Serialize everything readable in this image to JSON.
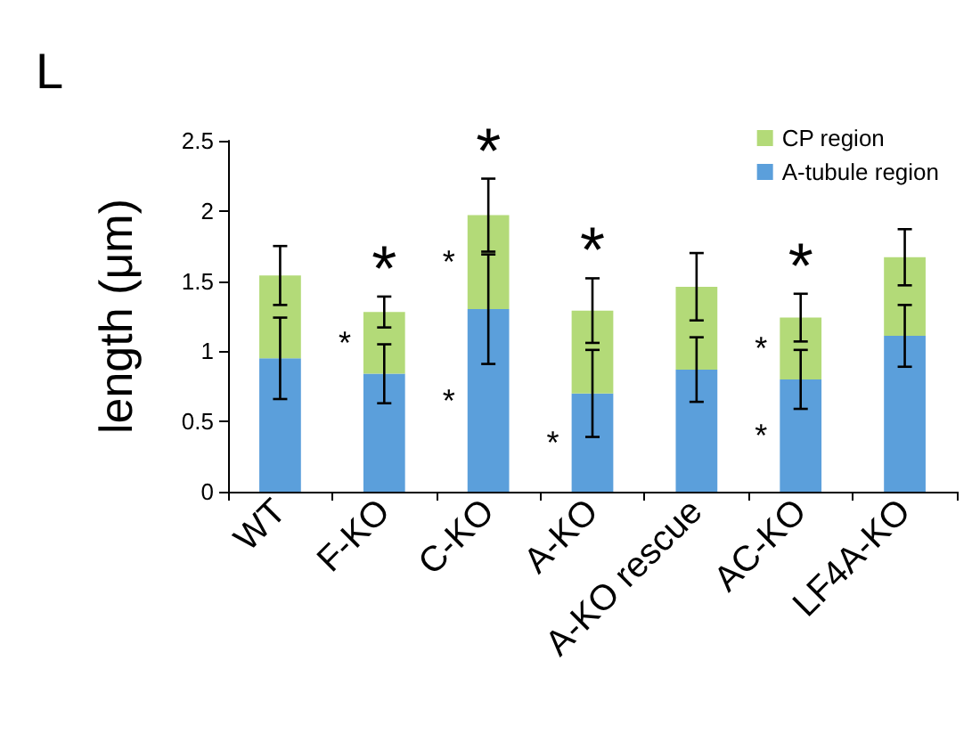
{
  "chart_data": {
    "type": "bar",
    "stacked": true,
    "ylabel": "length (μm)",
    "categories": [
      "WT",
      "F-KO",
      "C-KO",
      "A-KO",
      "A-KO rescue",
      "AC-KO",
      "LF4A-KO"
    ],
    "series": [
      {
        "name": "A-tubule region",
        "color": "#5b9fdb",
        "values": [
          0.95,
          0.84,
          1.3,
          0.7,
          0.87,
          0.8,
          1.11
        ],
        "errors": [
          0.29,
          0.21,
          0.39,
          0.31,
          0.23,
          0.21,
          0.22
        ]
      },
      {
        "name": "CP region",
        "color": "#b3da78",
        "values": [
          0.59,
          0.44,
          0.67,
          0.59,
          0.59,
          0.44,
          0.56
        ],
        "errors": [
          0.21,
          0.11,
          0.26,
          0.23,
          0.24,
          0.17,
          0.2
        ]
      }
    ],
    "ylim": [
      0,
      2.5
    ],
    "yticks": [
      0,
      0.5,
      1,
      1.5,
      2,
      2.5
    ],
    "grid": false,
    "legend": "top right",
    "annotations": [
      "L",
      {
        "text": "*",
        "x": "F-KO",
        "y": 1.39
      },
      {
        "text": "*",
        "x": "C-KO",
        "y": 2.23
      },
      {
        "text": "*",
        "x": "A-KO",
        "y": 1.52
      },
      {
        "text": "*",
        "x": "AC-KO",
        "y": 1.41
      },
      {
        "text": "*",
        "x": "F-KO",
        "y": 1.28
      },
      {
        "text": "*",
        "x": "C-KO",
        "y": 1.97
      },
      {
        "text": "*",
        "x": "C-KO",
        "y": 1.3
      },
      {
        "text": "*",
        "x": "A-KO",
        "y": 0.7
      },
      {
        "text": "*",
        "x": "AC-KO",
        "y": 1.24
      },
      {
        "text": "*",
        "x": "AC-KO",
        "y": 0.8
      }
    ]
  }
}
